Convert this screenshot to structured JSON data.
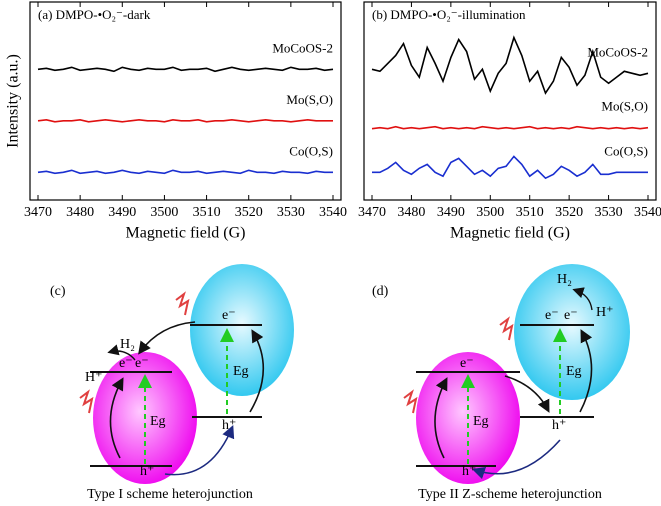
{
  "chart_data": [
    {
      "type": "line",
      "title": "(a) DMPO-•O₂⁻-dark",
      "xlabel": "Magnetic field (G)",
      "ylabel": "Intensity (a.u.)",
      "x": [
        3470,
        3472,
        3474,
        3476,
        3478,
        3480,
        3482,
        3484,
        3486,
        3488,
        3490,
        3492,
        3494,
        3496,
        3498,
        3500,
        3502,
        3504,
        3506,
        3508,
        3510,
        3512,
        3514,
        3516,
        3518,
        3520,
        3522,
        3524,
        3526,
        3528,
        3530,
        3532,
        3534,
        3536,
        3538,
        3540
      ],
      "xlim": [
        3470,
        3540
      ],
      "xticks": [
        3470,
        3480,
        3490,
        3500,
        3510,
        3520,
        3530,
        3540
      ],
      "ylim": [
        0,
        10
      ],
      "series": [
        {
          "name": "MoCoOS-2",
          "color": "#000000",
          "values": [
            6.6,
            6.65,
            6.55,
            6.6,
            6.7,
            6.55,
            6.6,
            6.65,
            6.6,
            6.5,
            6.7,
            6.6,
            6.55,
            6.65,
            6.6,
            6.6,
            6.7,
            6.55,
            6.6,
            6.6,
            6.65,
            6.5,
            6.6,
            6.7,
            6.6,
            6.55,
            6.6,
            6.65,
            6.6,
            6.55,
            6.7,
            6.6,
            6.6,
            6.65,
            6.55,
            6.6
          ]
        },
        {
          "name": "Mo(S,O)",
          "color": "#e01010",
          "values": [
            4.0,
            4.05,
            3.95,
            4.0,
            4.0,
            4.05,
            3.95,
            4.0,
            4.05,
            4.0,
            3.95,
            4.0,
            4.05,
            4.0,
            4.0,
            3.95,
            4.05,
            4.0,
            4.0,
            4.05,
            3.95,
            4.0,
            4.0,
            4.05,
            4.0,
            3.95,
            4.0,
            4.05,
            4.0,
            4.0,
            3.95,
            4.0,
            4.05,
            4.0,
            4.0,
            4.0
          ]
        },
        {
          "name": "Co(O,S)",
          "color": "#1a2fd0",
          "values": [
            1.4,
            1.45,
            1.35,
            1.4,
            1.5,
            1.35,
            1.4,
            1.45,
            1.35,
            1.4,
            1.5,
            1.4,
            1.35,
            1.45,
            1.4,
            1.35,
            1.5,
            1.4,
            1.4,
            1.45,
            1.35,
            1.4,
            1.45,
            1.4,
            1.35,
            1.5,
            1.4,
            1.4,
            1.35,
            1.45,
            1.4,
            1.4,
            1.35,
            1.45,
            1.4,
            1.4
          ]
        }
      ]
    },
    {
      "type": "line",
      "title": "(b) DMPO-•O₂⁻-illumination",
      "xlabel": "Magnetic field (G)",
      "x": [
        3470,
        3472,
        3474,
        3476,
        3478,
        3480,
        3482,
        3484,
        3486,
        3488,
        3490,
        3492,
        3494,
        3496,
        3498,
        3500,
        3502,
        3504,
        3506,
        3508,
        3510,
        3512,
        3514,
        3516,
        3518,
        3520,
        3522,
        3524,
        3526,
        3528,
        3530,
        3532,
        3534,
        3536,
        3538,
        3540
      ],
      "xlim": [
        3470,
        3540
      ],
      "xticks": [
        3470,
        3480,
        3490,
        3500,
        3510,
        3520,
        3530,
        3540
      ],
      "ylim": [
        0,
        10
      ],
      "series": [
        {
          "name": "MoCoOS-2",
          "color": "#000000",
          "values": [
            6.6,
            6.5,
            6.9,
            7.3,
            7.9,
            6.8,
            6.2,
            7.7,
            6.9,
            6.0,
            7.2,
            8.1,
            7.5,
            6.1,
            6.6,
            5.5,
            6.4,
            6.9,
            8.2,
            7.3,
            6.0,
            6.5,
            5.4,
            6.0,
            7.2,
            6.7,
            5.8,
            6.3,
            7.5,
            6.2,
            5.9,
            6.2,
            6.5,
            6.4,
            6.3,
            6.4
          ]
        },
        {
          "name": "Mo(S,O)",
          "color": "#e01010",
          "values": [
            3.6,
            3.65,
            3.6,
            3.7,
            3.6,
            3.65,
            3.6,
            3.65,
            3.7,
            3.6,
            3.65,
            3.6,
            3.65,
            3.6,
            3.7,
            3.65,
            3.6,
            3.65,
            3.6,
            3.65,
            3.7,
            3.6,
            3.65,
            3.6,
            3.65,
            3.6,
            3.7,
            3.65,
            3.6,
            3.65,
            3.6,
            3.65,
            3.6,
            3.65,
            3.6,
            3.65
          ]
        },
        {
          "name": "Co(O,S)",
          "color": "#1a2fd0",
          "values": [
            1.4,
            1.4,
            1.6,
            1.9,
            1.5,
            1.3,
            1.6,
            1.8,
            1.4,
            1.2,
            1.9,
            2.1,
            1.7,
            1.3,
            1.5,
            1.2,
            1.6,
            1.7,
            2.2,
            1.8,
            1.2,
            1.5,
            1.1,
            1.3,
            1.7,
            1.5,
            1.2,
            1.4,
            1.8,
            1.3,
            1.3,
            1.4,
            1.4,
            1.4,
            1.4,
            1.4
          ]
        }
      ]
    }
  ],
  "diagrams": [
    {
      "panel": "(c)",
      "h2": "H₂",
      "hplus": "H⁺",
      "left_e": [
        "e⁻",
        "e⁻"
      ],
      "left_gap": "Eg",
      "left_h": "h⁺",
      "right_e": "e⁻",
      "right_gap": "Eg",
      "right_h": "h⁺",
      "caption": "Type I scheme heterojunction"
    },
    {
      "panel": "(d)",
      "h2": "H₂",
      "hplus": "H⁺",
      "left_e": "e⁻",
      "left_gap": "Eg",
      "left_h": "h⁺",
      "right_e": [
        "e⁻",
        "e⁻"
      ],
      "right_gap": "Eg",
      "right_h": "h⁺",
      "caption": "Type II Z-scheme heterojunction"
    }
  ]
}
